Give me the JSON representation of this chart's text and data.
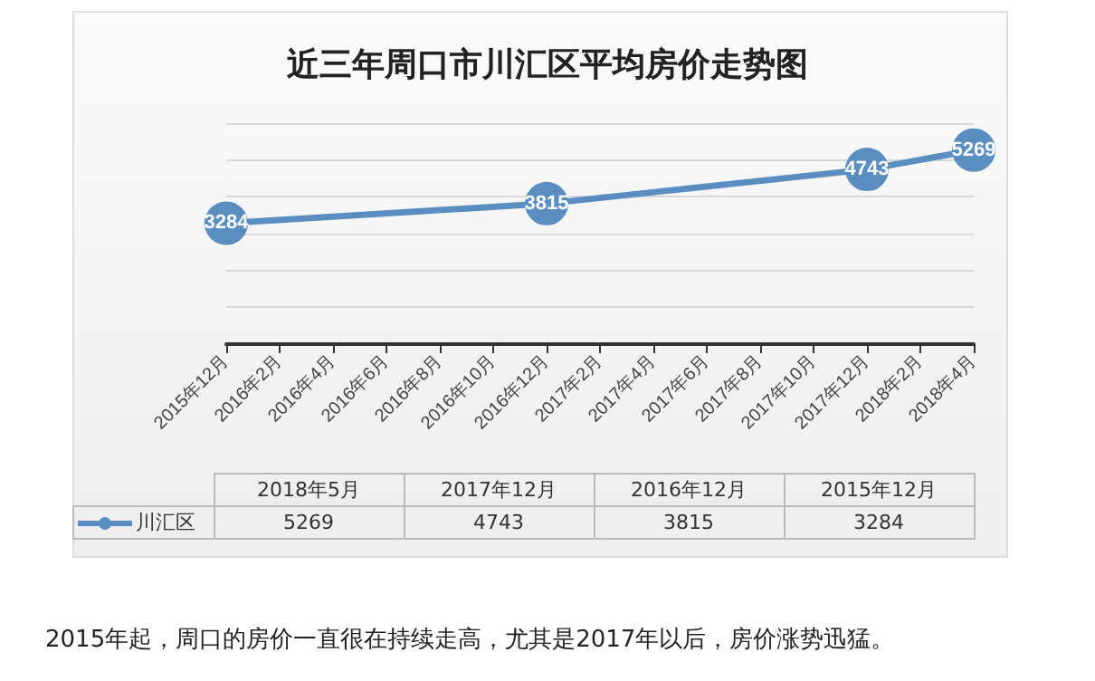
{
  "chart_data": [
    {
      "type": "line",
      "title": "近三年周口市川汇区平均房价走势图",
      "categories": [
        "2015年12月",
        "2016年2月",
        "2016年4月",
        "2016年6月",
        "2016年8月",
        "2016年10月",
        "2016年12月",
        "2017年2月",
        "2017年4月",
        "2017年6月",
        "2017年8月",
        "2017年10月",
        "2017年12月",
        "2018年2月",
        "2018年4月"
      ],
      "series": [
        {
          "color": "#5b8ec0",
          "x": [
            "2015年12月",
            "2016年12月",
            "2017年12月",
            "2018年4月"
          ],
          "values": [
            3284,
            3815,
            4743,
            5269
          ]
        }
      ],
      "ylim": [
        0,
        6000
      ],
      "yticks": [
        {
          "value": 0,
          "label": null
        },
        {
          "value": 1000,
          "label": null
        },
        {
          "value": 2000,
          "label": null
        },
        {
          "value": 3000,
          "label": null
        },
        {
          "value": 4000,
          "label": null
        },
        {
          "value": 5000,
          "label": null
        },
        {
          "value": 6000,
          "label": null
        }
      ],
      "data_labels": true,
      "grid": "y",
      "marker": "circle",
      "line_style": "solid",
      "tick_labels": "x"
    },
    {
      "type": "other",
      "categories": [
        "2018年5月",
        "2017年12月",
        "2016年12月",
        "2015年12月"
      ],
      "series": [
        {
          "name": "川汇区",
          "color": "#5b8ec0",
          "values": [
            5269,
            4743,
            3815,
            3284
          ]
        }
      ],
      "data_labels": true,
      "legend": "left",
      "annotations": [
        "2015年起，周口的房价一直很在持续走高，尤其是2017年以后，房价涨势迅猛。"
      ]
    }
  ]
}
